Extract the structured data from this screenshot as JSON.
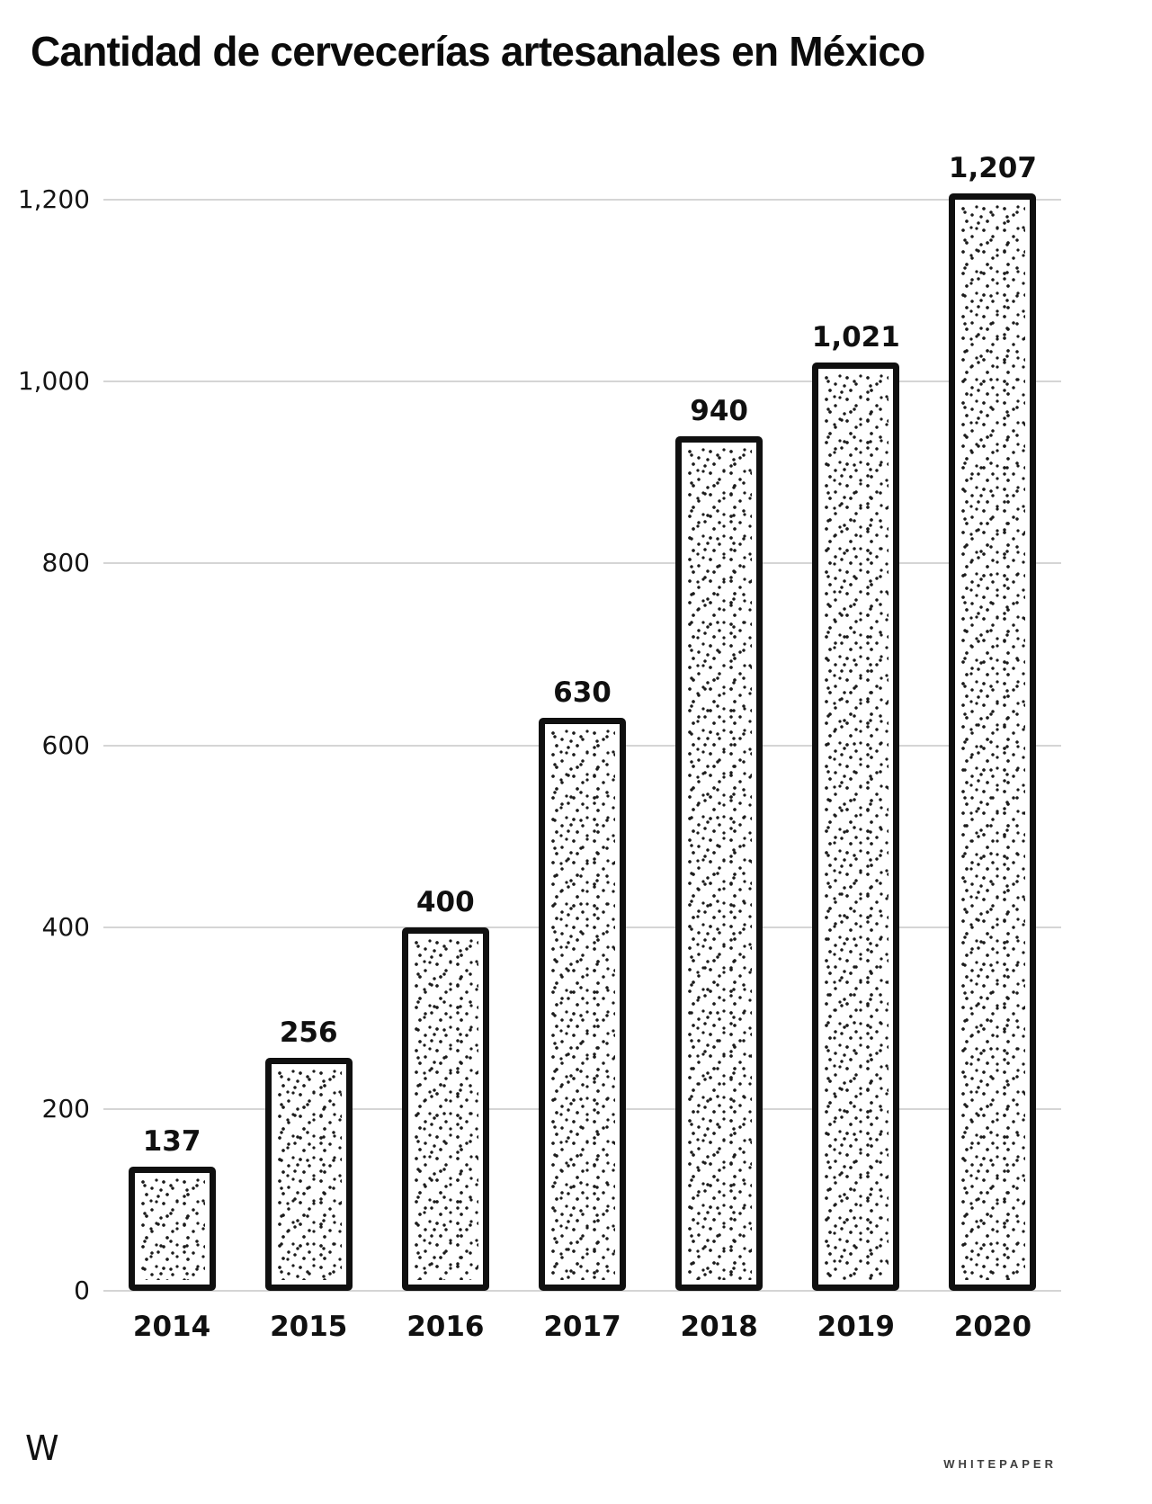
{
  "footer": {
    "logo": "W",
    "brand": "WHITEPAPER"
  },
  "chart_data": {
    "type": "bar",
    "title": "Cantidad de cervecerías artesanales en México",
    "categories": [
      "2014",
      "2015",
      "2016",
      "2017",
      "2018",
      "2019",
      "2020"
    ],
    "values": [
      137,
      256,
      400,
      630,
      940,
      1021,
      1207
    ],
    "value_labels": [
      "137",
      "256",
      "400",
      "630",
      "940",
      "1,021",
      "1,207"
    ],
    "xlabel": "",
    "ylabel": "",
    "ylim": [
      0,
      1200
    ],
    "yticks": [
      0,
      200,
      400,
      600,
      800,
      1000,
      1200
    ],
    "ytick_labels": [
      "0",
      "200",
      "400",
      "600",
      "800",
      "1,000",
      "1,200"
    ],
    "grid": true,
    "legend": false,
    "bar_fill_style": "stipple-dots",
    "colors": {
      "bar_border": "#101010",
      "bar_fill": "#ffffff",
      "dot": "#1c1c1c",
      "gridline": "#d5d5d5",
      "text": "#101010",
      "background": "#ffffff"
    }
  }
}
